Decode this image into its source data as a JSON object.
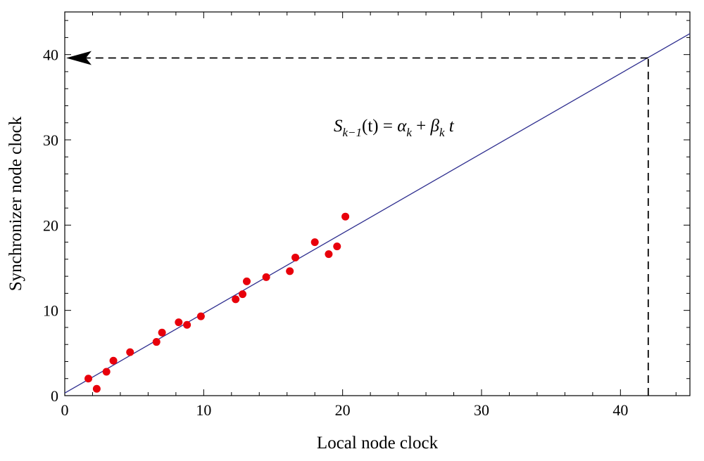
{
  "chart_data": {
    "type": "scatter",
    "xlabel": "Local node clock",
    "ylabel": "Synchronizer node clock",
    "xlim": [
      0,
      45
    ],
    "ylim": [
      0,
      45
    ],
    "x_ticks": [
      0,
      10,
      20,
      30,
      40
    ],
    "y_ticks": [
      0,
      10,
      20,
      30,
      40
    ],
    "grid": false,
    "series": [
      {
        "marker": "circle",
        "color": "#e8000b",
        "x": [
          1.7,
          2.3,
          3.0,
          3.5,
          4.7,
          6.6,
          7.0,
          8.2,
          8.8,
          9.8,
          12.3,
          12.8,
          13.1,
          14.5,
          16.2,
          16.6,
          18.0,
          19.0,
          19.6,
          20.2
        ],
        "y": [
          2.0,
          0.8,
          2.8,
          4.1,
          5.1,
          6.3,
          7.4,
          8.6,
          8.3,
          9.3,
          11.3,
          11.9,
          13.4,
          13.9,
          14.6,
          16.2,
          18.0,
          16.6,
          17.5,
          21.0
        ]
      }
    ],
    "fit_line": {
      "color": "#2e2e8f",
      "intercept": 0.3,
      "slope": 0.937
    },
    "annotation": {
      "x_value": 42,
      "y_value": 39.6,
      "arrow_direction": "left"
    },
    "equation": {
      "S": "S",
      "S_sub": "k−1",
      "t_arg": "(t)",
      "equals": " = ",
      "alpha": "α",
      "alpha_sub": "k",
      "plus": " + ",
      "beta": "β",
      "beta_sub": "k",
      "t": " t"
    }
  }
}
